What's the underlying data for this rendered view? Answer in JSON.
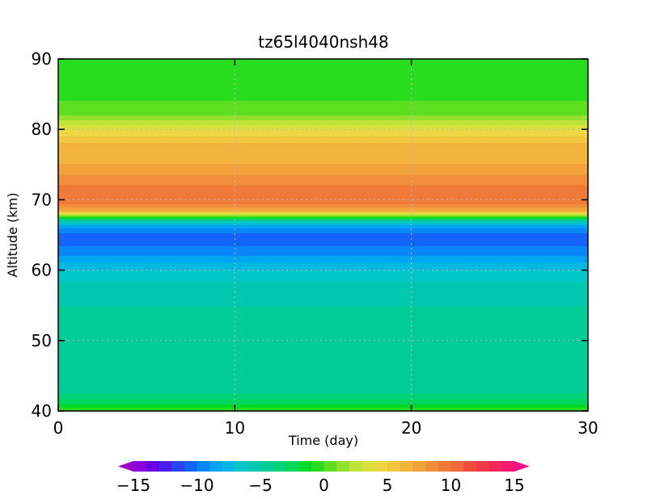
{
  "chart_data": {
    "type": "heatmap",
    "title": "tz65l4040nsh48",
    "xlabel": "Time (day)",
    "ylabel": "Altitude (km)",
    "xlim": [
      0,
      30
    ],
    "ylim": [
      40,
      90
    ],
    "x_ticks": [
      0,
      10,
      20,
      30
    ],
    "y_ticks": [
      40,
      50,
      60,
      70,
      80,
      90
    ],
    "grid": true,
    "x_grid_lines": [
      10,
      20
    ],
    "y_grid_lines": [
      50,
      60,
      70,
      80
    ],
    "colorbar": {
      "ticks": [
        -15,
        -10,
        -5,
        0,
        5,
        10,
        15
      ],
      "labels": [
        "−15",
        "−10",
        "−5",
        "0",
        "5",
        "10",
        "15"
      ],
      "range": [
        -16,
        16
      ],
      "step": 1,
      "colors": [
        "#9e00c8",
        "#8800dc",
        "#6a00e6",
        "#4a1ef0",
        "#2a44f4",
        "#1464f8",
        "#0a86f8",
        "#00a4f0",
        "#00b8e0",
        "#00c6c8",
        "#00c8b0",
        "#00cc96",
        "#00d278",
        "#00d65a",
        "#00da28",
        "#28dc1e",
        "#5ede1e",
        "#94e02e",
        "#bee43a",
        "#dae03e",
        "#ecd644",
        "#f2c640",
        "#f2b43c",
        "#f2a23a",
        "#f08e3a",
        "#f07a3a",
        "#f2663a",
        "#f24e40",
        "#f43a48",
        "#f62858",
        "#f81a72",
        "#f8108a"
      ]
    },
    "altitude_profile": {
      "altitude_km": [
        40,
        40.5,
        41.5,
        42.5,
        44,
        46,
        50,
        55,
        57.5,
        60,
        62,
        63.5,
        64.8,
        66,
        66.8,
        67.4,
        67.8,
        68.2,
        68.8,
        70,
        72,
        75,
        78,
        79.5,
        80.5,
        82,
        84,
        86,
        88,
        90
      ],
      "value": [
        0,
        -1,
        -3,
        -4,
        -4.5,
        -5,
        -5,
        -5,
        -5.5,
        -7,
        -9,
        -10,
        -10.5,
        -9,
        -6,
        -2,
        2,
        6,
        8,
        10,
        9,
        7,
        6,
        4.5,
        3,
        1,
        0,
        -1,
        -0.5,
        0
      ]
    }
  }
}
